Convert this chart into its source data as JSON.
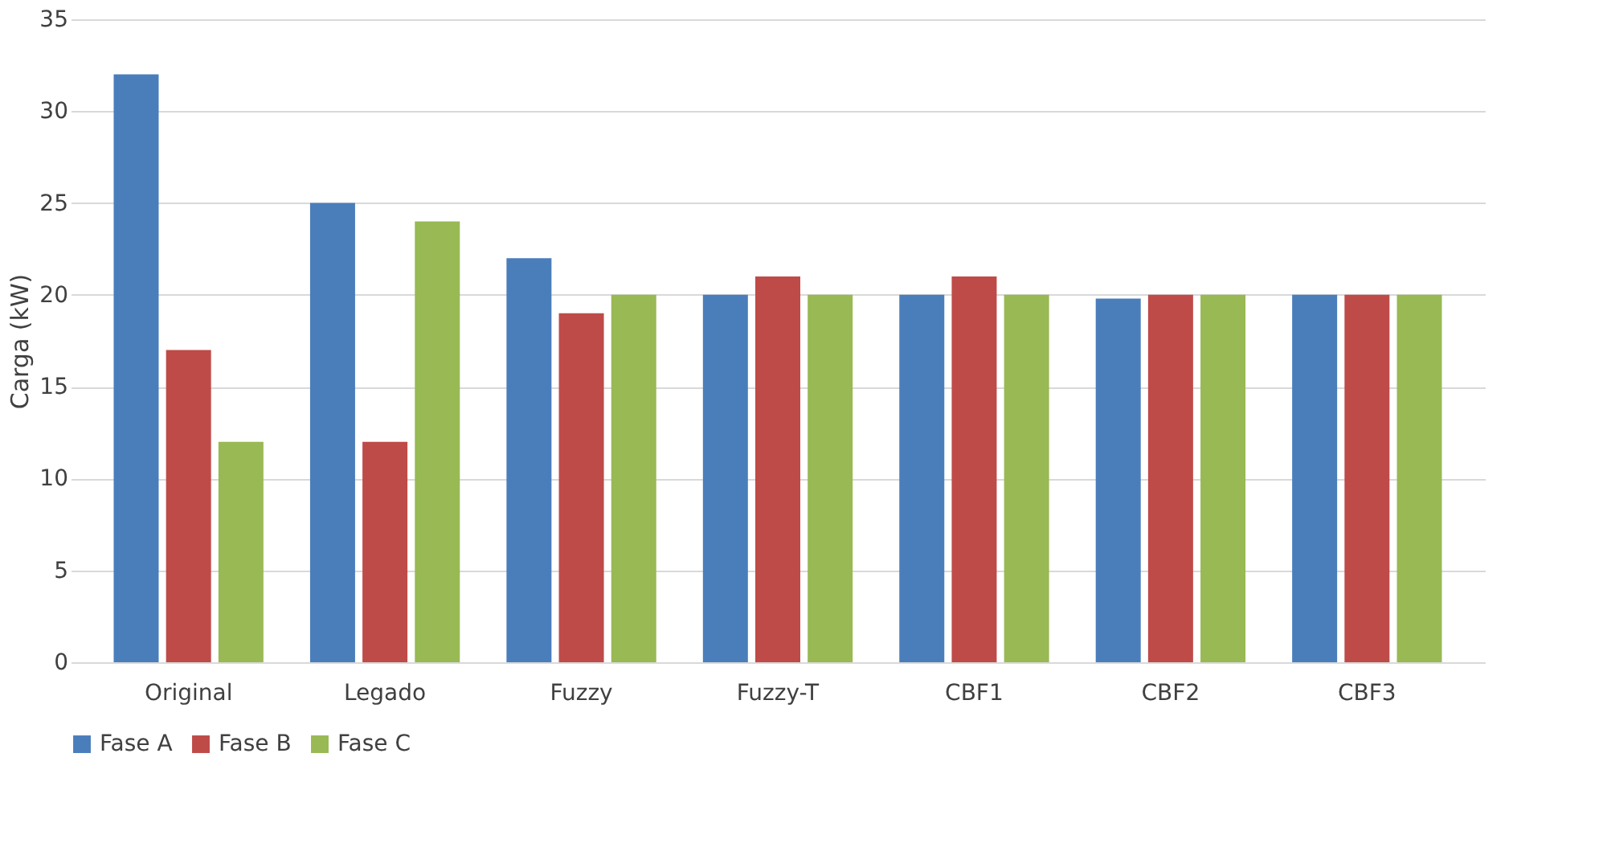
{
  "chart_data": {
    "type": "bar",
    "ylabel": "Carga (kW)",
    "categories": [
      "Original",
      "Legado",
      "Fuzzy",
      "Fuzzy-T",
      "CBF1",
      "CBF2",
      "CBF3"
    ],
    "series": [
      {
        "name": "Fase A",
        "color": "#4a7ebb",
        "values": [
          32,
          25,
          22,
          20,
          20,
          19.8,
          20
        ]
      },
      {
        "name": "Fase B",
        "color": "#be4b48",
        "values": [
          17,
          12,
          19,
          21,
          21,
          20,
          20
        ]
      },
      {
        "name": "Fase C",
        "color": "#98b954",
        "values": [
          12,
          24,
          20,
          20,
          20,
          20,
          20
        ]
      }
    ],
    "ylim": [
      0,
      35
    ],
    "yticks": [
      0,
      5,
      10,
      15,
      20,
      25,
      30,
      35
    ],
    "grid": "y",
    "legend": "bottom"
  }
}
